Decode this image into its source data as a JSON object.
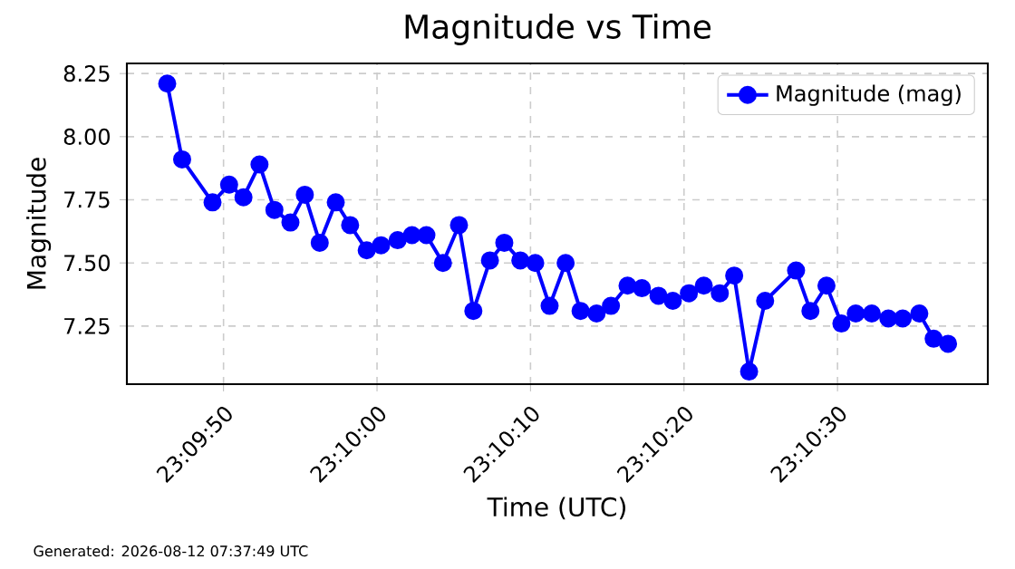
{
  "chart_data": {
    "type": "line",
    "title": "Magnitude vs Time",
    "xlabel": "Time (UTC)",
    "ylabel": "Magnitude",
    "x": [
      23.16287,
      23.16314,
      23.16369,
      23.16399,
      23.16425,
      23.16454,
      23.16481,
      23.1651,
      23.16536,
      23.16563,
      23.16592,
      23.16618,
      23.16648,
      23.16674,
      23.16704,
      23.1673,
      23.16756,
      23.16786,
      23.16815,
      23.16841,
      23.16871,
      23.16897,
      23.16926,
      23.16953,
      23.16979,
      23.17008,
      23.17035,
      23.17064,
      23.1709,
      23.1712,
      23.17146,
      23.17176,
      23.17202,
      23.17231,
      23.17258,
      23.17287,
      23.17313,
      23.1734,
      23.17369,
      23.17425,
      23.17451,
      23.1748,
      23.17507,
      23.17533,
      23.17562,
      23.17592,
      23.17618,
      23.17648,
      23.17674,
      23.177
    ],
    "series": [
      {
        "name": "Magnitude (mag)",
        "color": "#0000ff",
        "values": [
          8.21,
          7.91,
          7.74,
          7.81,
          7.76,
          7.89,
          7.71,
          7.66,
          7.77,
          7.58,
          7.74,
          7.65,
          7.55,
          7.57,
          7.59,
          7.61,
          7.61,
          7.5,
          7.65,
          7.31,
          7.51,
          7.58,
          7.51,
          7.5,
          7.33,
          7.5,
          7.31,
          7.3,
          7.33,
          7.41,
          7.4,
          7.37,
          7.35,
          7.38,
          7.41,
          7.38,
          7.45,
          7.07,
          7.35,
          7.47,
          7.31,
          7.41,
          7.26,
          7.3,
          7.3,
          7.28,
          7.28,
          7.3,
          7.2,
          7.18
        ]
      }
    ],
    "xlim": [
      23.16214,
      23.17772
    ],
    "ylim": [
      7.02,
      8.29
    ],
    "xticks": [
      {
        "value": 23.163889,
        "label": "23:09:50"
      },
      {
        "value": 23.166667,
        "label": "23:10:00"
      },
      {
        "value": 23.169444,
        "label": "23:10:10"
      },
      {
        "value": 23.172222,
        "label": "23:10:20"
      },
      {
        "value": 23.175,
        "label": "23:10:30"
      }
    ],
    "yticks": [
      7.25,
      {
        "value": 7.5,
        "label": "7.50"
      },
      7.75,
      {
        "value": 8.0,
        "label": "8.00"
      },
      8.25
    ],
    "grid": true,
    "legend": "top right",
    "marker": "circle",
    "line_style": "solid",
    "annotations": [
      "Generated: 2026-08-12 07:37:49 UTC"
    ]
  }
}
